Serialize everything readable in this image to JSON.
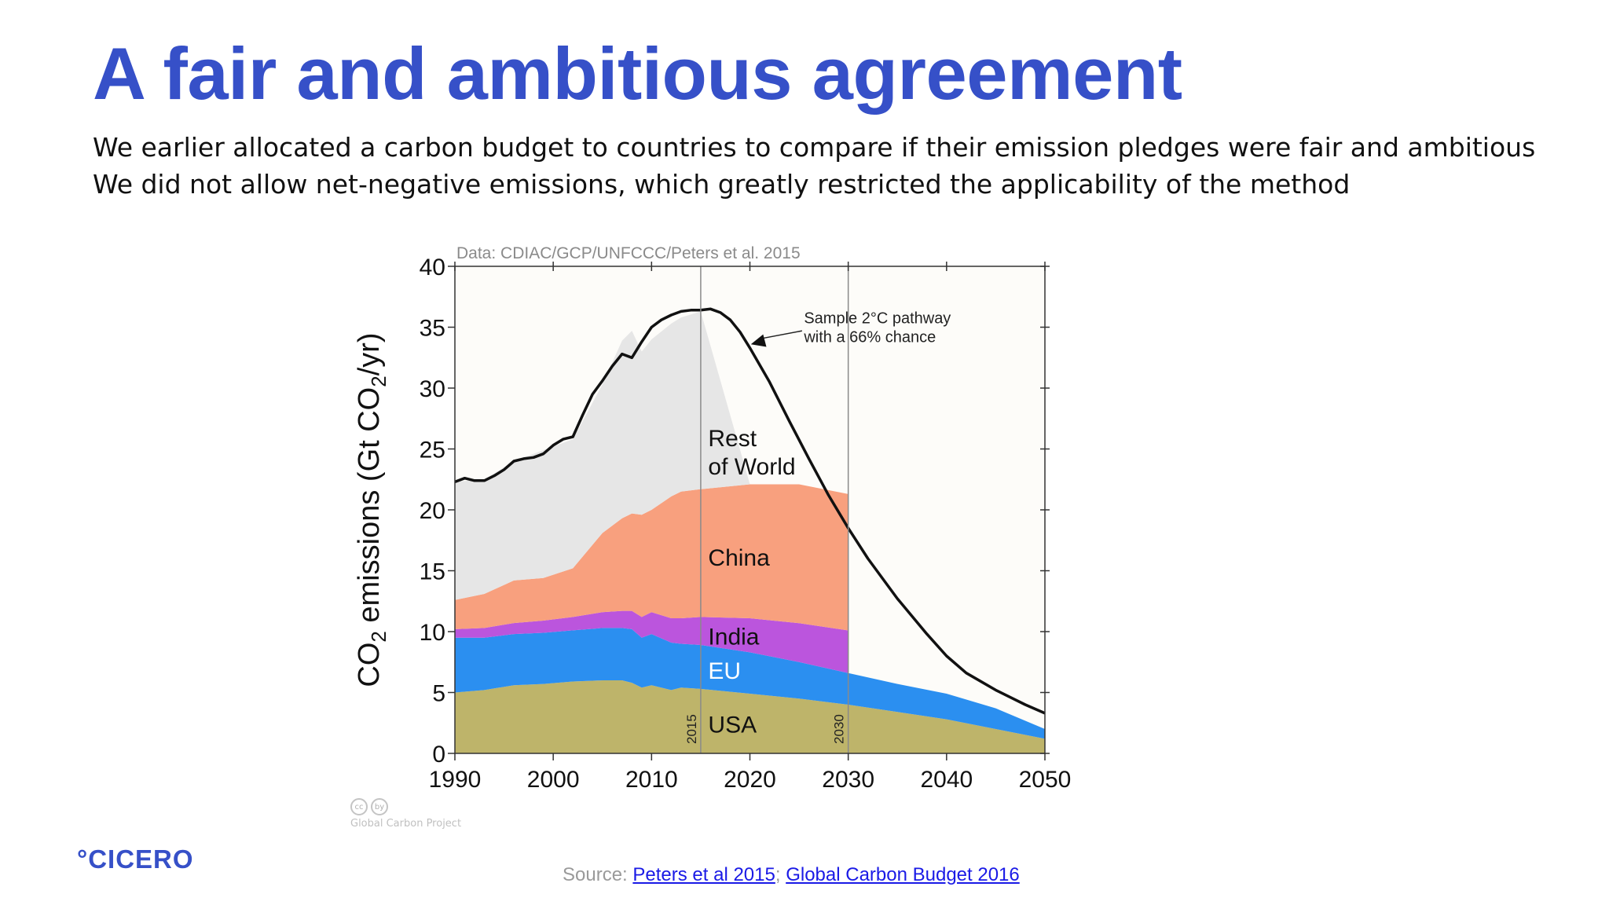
{
  "slide": {
    "title": "A fair and ambitious agreement",
    "bullets": [
      "We earlier allocated a carbon budget to countries to compare if their emission pledges were fair and ambitious",
      "We did not allow net-negative emissions, which greatly restricted the applicability of the method"
    ],
    "logo": "°CICERO",
    "source_prefix": "Source: ",
    "source_link_1": "Peters et al 2015",
    "source_sep": "; ",
    "source_link_2": "Global Carbon Budget 2016",
    "cc_text": "Global Carbon Project",
    "cc_icons": [
      "cc",
      "by"
    ]
  },
  "colors": {
    "title": "#3650c8",
    "usa": "#beb46a",
    "eu": "#2b8ff0",
    "india": "#bb55dd",
    "china": "#f8a07e",
    "rest_of_world": "#e6e6e6",
    "pathway": "#111111",
    "plot_bg": "#fdfcf9"
  },
  "chart_data": {
    "type": "area",
    "stacked": true,
    "data_credit": "Data: CDIAC/GCP/UNFCCC/Peters et al. 2015",
    "ylabel_parts": [
      "CO",
      "2",
      " emissions (Gt CO",
      "2",
      "/yr)"
    ],
    "xlim": [
      1990,
      2050
    ],
    "ylim": [
      0,
      40
    ],
    "x_ticks": [
      "1990",
      "2000",
      "2010",
      "2020",
      "2030",
      "2040",
      "2050"
    ],
    "y_ticks": [
      "0",
      "5",
      "10",
      "15",
      "20",
      "25",
      "30",
      "35",
      "40"
    ],
    "vlines": [
      {
        "x": 2015,
        "label": "2015"
      },
      {
        "x": 2030,
        "label": "2030"
      }
    ],
    "x": [
      1990,
      1993,
      1996,
      1999,
      2002,
      2005,
      2007,
      2008,
      2009,
      2010,
      2012,
      2013,
      2015,
      2020,
      2025,
      2030,
      2035,
      2040,
      2045,
      2050
    ],
    "series": [
      {
        "name": "USA",
        "label_lines": [
          "USA"
        ],
        "label_pos": [
          2016,
          2.5
        ],
        "label_color": "#111111",
        "values": [
          5.0,
          5.2,
          5.6,
          5.7,
          5.9,
          6.0,
          6.0,
          5.8,
          5.4,
          5.6,
          5.2,
          5.4,
          5.3,
          4.9,
          4.5,
          4.0,
          3.4,
          2.8,
          2.0,
          1.2
        ]
      },
      {
        "name": "EU",
        "label_lines": [
          "EU"
        ],
        "label_pos": [
          2016,
          6.9
        ],
        "label_color": "#ffffff",
        "values": [
          4.5,
          4.3,
          4.2,
          4.2,
          4.2,
          4.3,
          4.3,
          4.4,
          4.1,
          4.2,
          3.9,
          3.6,
          3.6,
          3.4,
          3.0,
          2.6,
          2.3,
          2.1,
          1.7,
          0.8
        ]
      },
      {
        "name": "India",
        "label_lines": [
          "India"
        ],
        "label_pos": [
          2016,
          9.7
        ],
        "label_color": "#111111",
        "values": [
          0.7,
          0.8,
          0.9,
          1.0,
          1.1,
          1.3,
          1.4,
          1.5,
          1.7,
          1.8,
          2.0,
          2.1,
          2.3,
          2.8,
          3.2,
          3.5,
          null,
          null,
          null,
          null
        ]
      },
      {
        "name": "China",
        "label_lines": [
          "China"
        ],
        "label_pos": [
          2016,
          16.2
        ],
        "label_color": "#111111",
        "values": [
          2.4,
          2.8,
          3.5,
          3.5,
          4.0,
          6.5,
          7.6,
          8.0,
          8.4,
          8.4,
          10.0,
          10.4,
          10.5,
          11.0,
          11.4,
          11.2,
          null,
          null,
          null,
          null
        ]
      },
      {
        "name": "Rest of World",
        "label_lines": [
          "Rest",
          "of World"
        ],
        "label_pos": [
          2016,
          26.0
        ],
        "label_color": "#111111",
        "values": [
          9.7,
          9.4,
          9.8,
          10.5,
          10.6,
          12.2,
          14.6,
          15.0,
          13.4,
          14.0,
          14.2,
          14.3,
          14.6,
          0.0,
          0.0,
          0.0,
          null,
          null,
          null,
          null
        ]
      }
    ],
    "pathway": {
      "name": "Sample 2°C pathway with a 66% chance",
      "label_lines": [
        "Sample 2°C pathway",
        "with a 66% chance"
      ],
      "label_pos": [
        2025.5,
        35.7
      ],
      "arrow_from": [
        2025.3,
        34.7
      ],
      "arrow_to": [
        2020.1,
        33.6
      ],
      "x": [
        1990,
        1991,
        1992,
        1993,
        1994,
        1995,
        1996,
        1997,
        1998,
        1999,
        2000,
        2001,
        2002,
        2003,
        2004,
        2005,
        2006,
        2007,
        2008,
        2009,
        2010,
        2011,
        2012,
        2013,
        2014,
        2015,
        2016,
        2017,
        2018,
        2019,
        2020,
        2022,
        2024,
        2026,
        2028,
        2030,
        2032,
        2035,
        2038,
        2040,
        2042,
        2045,
        2048,
        2050
      ],
      "y": [
        22.3,
        22.6,
        22.4,
        22.4,
        22.8,
        23.3,
        24.0,
        24.2,
        24.3,
        24.6,
        25.3,
        25.8,
        26.0,
        27.8,
        29.5,
        30.6,
        31.8,
        32.8,
        32.5,
        33.8,
        35.0,
        35.6,
        36.0,
        36.3,
        36.4,
        36.4,
        36.5,
        36.2,
        35.6,
        34.6,
        33.3,
        30.5,
        27.3,
        24.2,
        21.2,
        18.5,
        16.0,
        12.7,
        9.8,
        8.0,
        6.6,
        5.2,
        4.0,
        3.3
      ]
    }
  }
}
